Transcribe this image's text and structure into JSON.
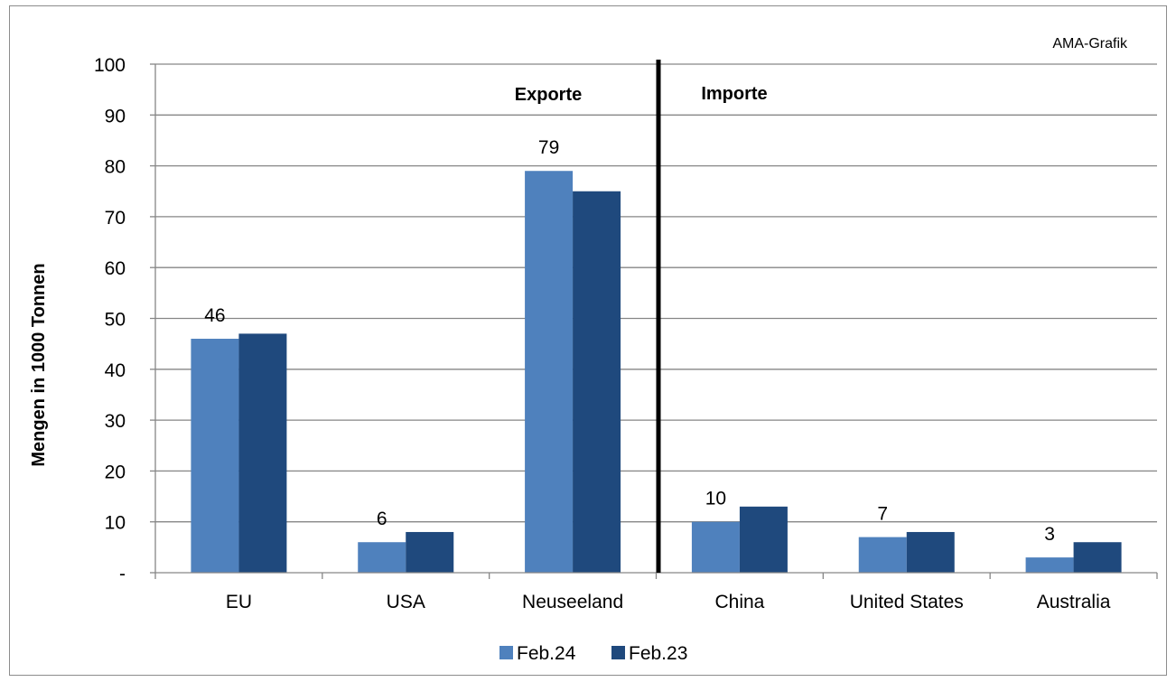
{
  "chart_data": {
    "type": "bar",
    "source_note": "AMA-Grafik",
    "ylabel": "Mengen in 1000 Tonnen",
    "ylim": [
      0,
      100
    ],
    "y_ticks": [
      "-",
      "10",
      "20",
      "30",
      "40",
      "50",
      "60",
      "70",
      "80",
      "90",
      "100"
    ],
    "categories": [
      "EU",
      "USA",
      "Neuseeland",
      "China",
      "United States",
      "Australia"
    ],
    "series": [
      {
        "name": "Feb.24",
        "color": "#4f81bd",
        "values": [
          46,
          6,
          79,
          10,
          7,
          3
        ]
      },
      {
        "name": "Feb.23",
        "color": "#1f497d",
        "values": [
          47,
          8,
          75,
          13,
          8,
          6
        ]
      }
    ],
    "data_labels": [
      "46",
      "6",
      "79",
      "10",
      "7",
      "3"
    ],
    "sections": [
      {
        "label": "Exporte",
        "categories": [
          "EU",
          "USA",
          "Neuseeland"
        ]
      },
      {
        "label": "Importe",
        "categories": [
          "China",
          "United States",
          "Australia"
        ]
      }
    ],
    "grid": true,
    "legend_position": "bottom"
  }
}
